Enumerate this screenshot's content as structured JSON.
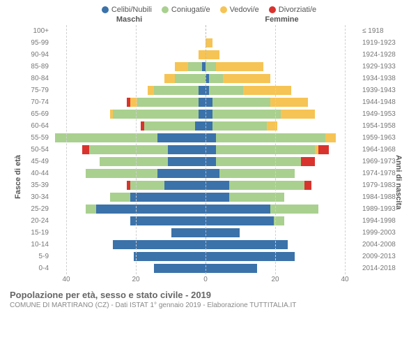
{
  "type": "population-pyramid",
  "legend": [
    {
      "label": "Celibi/Nubili",
      "color": "#3b72aa"
    },
    {
      "label": "Coniugati/e",
      "color": "#a9d08f"
    },
    {
      "label": "Vedovi/e",
      "color": "#f6c454"
    },
    {
      "label": "Divorziati/e",
      "color": "#d9332e"
    }
  ],
  "headers": {
    "male": "Maschi",
    "female": "Femmine"
  },
  "y_left_title": "Fasce di età",
  "y_right_title": "Anni di nascita",
  "x_ticks": [
    40,
    20,
    0,
    20,
    40
  ],
  "x_max": 45,
  "title": "Popolazione per età, sesso e stato civile - 2019",
  "subtitle": "COMUNE DI MARTIRANO (CZ) - Dati ISTAT 1° gennaio 2019 - Elaborazione TUTTITALIA.IT",
  "colors": {
    "single": "#3b72aa",
    "married": "#a9d08f",
    "widowed": "#f6c454",
    "divorced": "#d9332e",
    "grid": "#d0d0d0",
    "center": "#bbbbbb",
    "text": "#777777"
  },
  "rows": [
    {
      "age": "100+",
      "year": "≤ 1918",
      "m": {
        "s": 0,
        "c": 0,
        "w": 0,
        "d": 0
      },
      "f": {
        "s": 0,
        "c": 0,
        "w": 0,
        "d": 0
      }
    },
    {
      "age": "95-99",
      "year": "1919-1923",
      "m": {
        "s": 0,
        "c": 0,
        "w": 0,
        "d": 0
      },
      "f": {
        "s": 0,
        "c": 0,
        "w": 2,
        "d": 0
      }
    },
    {
      "age": "90-94",
      "year": "1924-1928",
      "m": {
        "s": 0,
        "c": 0,
        "w": 2,
        "d": 0
      },
      "f": {
        "s": 0,
        "c": 0,
        "w": 4,
        "d": 0
      }
    },
    {
      "age": "85-89",
      "year": "1929-1933",
      "m": {
        "s": 1,
        "c": 4,
        "w": 4,
        "d": 0
      },
      "f": {
        "s": 0,
        "c": 3,
        "w": 14,
        "d": 0
      }
    },
    {
      "age": "80-84",
      "year": "1934-1938",
      "m": {
        "s": 0,
        "c": 9,
        "w": 3,
        "d": 0
      },
      "f": {
        "s": 1,
        "c": 4,
        "w": 14,
        "d": 0
      }
    },
    {
      "age": "75-79",
      "year": "1939-1943",
      "m": {
        "s": 2,
        "c": 13,
        "w": 2,
        "d": 0
      },
      "f": {
        "s": 1,
        "c": 10,
        "w": 14,
        "d": 0
      }
    },
    {
      "age": "70-74",
      "year": "1944-1948",
      "m": {
        "s": 2,
        "c": 18,
        "w": 2,
        "d": 1
      },
      "f": {
        "s": 2,
        "c": 17,
        "w": 11,
        "d": 0
      }
    },
    {
      "age": "65-69",
      "year": "1949-1953",
      "m": {
        "s": 2,
        "c": 25,
        "w": 1,
        "d": 0
      },
      "f": {
        "s": 2,
        "c": 20,
        "w": 10,
        "d": 0
      }
    },
    {
      "age": "60-64",
      "year": "1954-1958",
      "m": {
        "s": 3,
        "c": 15,
        "w": 0,
        "d": 1
      },
      "f": {
        "s": 2,
        "c": 16,
        "w": 3,
        "d": 0
      }
    },
    {
      "age": "55-59",
      "year": "1959-1963",
      "m": {
        "s": 14,
        "c": 30,
        "w": 0,
        "d": 0
      },
      "f": {
        "s": 3,
        "c": 32,
        "w": 3,
        "d": 0
      }
    },
    {
      "age": "50-54",
      "year": "1964-1968",
      "m": {
        "s": 11,
        "c": 23,
        "w": 0,
        "d": 2
      },
      "f": {
        "s": 3,
        "c": 29,
        "w": 1,
        "d": 3
      }
    },
    {
      "age": "45-49",
      "year": "1969-1973",
      "m": {
        "s": 11,
        "c": 20,
        "w": 0,
        "d": 0
      },
      "f": {
        "s": 3,
        "c": 25,
        "w": 0,
        "d": 4
      }
    },
    {
      "age": "40-44",
      "year": "1974-1978",
      "m": {
        "s": 14,
        "c": 21,
        "w": 0,
        "d": 0
      },
      "f": {
        "s": 4,
        "c": 22,
        "w": 0,
        "d": 0
      }
    },
    {
      "age": "35-39",
      "year": "1979-1983",
      "m": {
        "s": 12,
        "c": 10,
        "w": 0,
        "d": 1
      },
      "f": {
        "s": 7,
        "c": 22,
        "w": 0,
        "d": 2
      }
    },
    {
      "age": "30-34",
      "year": "1984-1988",
      "m": {
        "s": 22,
        "c": 6,
        "w": 0,
        "d": 0
      },
      "f": {
        "s": 7,
        "c": 16,
        "w": 0,
        "d": 0
      }
    },
    {
      "age": "25-29",
      "year": "1989-1993",
      "m": {
        "s": 32,
        "c": 3,
        "w": 0,
        "d": 0
      },
      "f": {
        "s": 19,
        "c": 14,
        "w": 0,
        "d": 0
      }
    },
    {
      "age": "20-24",
      "year": "1994-1998",
      "m": {
        "s": 22,
        "c": 0,
        "w": 0,
        "d": 0
      },
      "f": {
        "s": 20,
        "c": 3,
        "w": 0,
        "d": 0
      }
    },
    {
      "age": "15-19",
      "year": "1999-2003",
      "m": {
        "s": 10,
        "c": 0,
        "w": 0,
        "d": 0
      },
      "f": {
        "s": 10,
        "c": 0,
        "w": 0,
        "d": 0
      }
    },
    {
      "age": "10-14",
      "year": "2004-2008",
      "m": {
        "s": 27,
        "c": 0,
        "w": 0,
        "d": 0
      },
      "f": {
        "s": 24,
        "c": 0,
        "w": 0,
        "d": 0
      }
    },
    {
      "age": "5-9",
      "year": "2009-2013",
      "m": {
        "s": 21,
        "c": 0,
        "w": 0,
        "d": 0
      },
      "f": {
        "s": 26,
        "c": 0,
        "w": 0,
        "d": 0
      }
    },
    {
      "age": "0-4",
      "year": "2014-2018",
      "m": {
        "s": 15,
        "c": 0,
        "w": 0,
        "d": 0
      },
      "f": {
        "s": 15,
        "c": 0,
        "w": 0,
        "d": 0
      }
    }
  ]
}
